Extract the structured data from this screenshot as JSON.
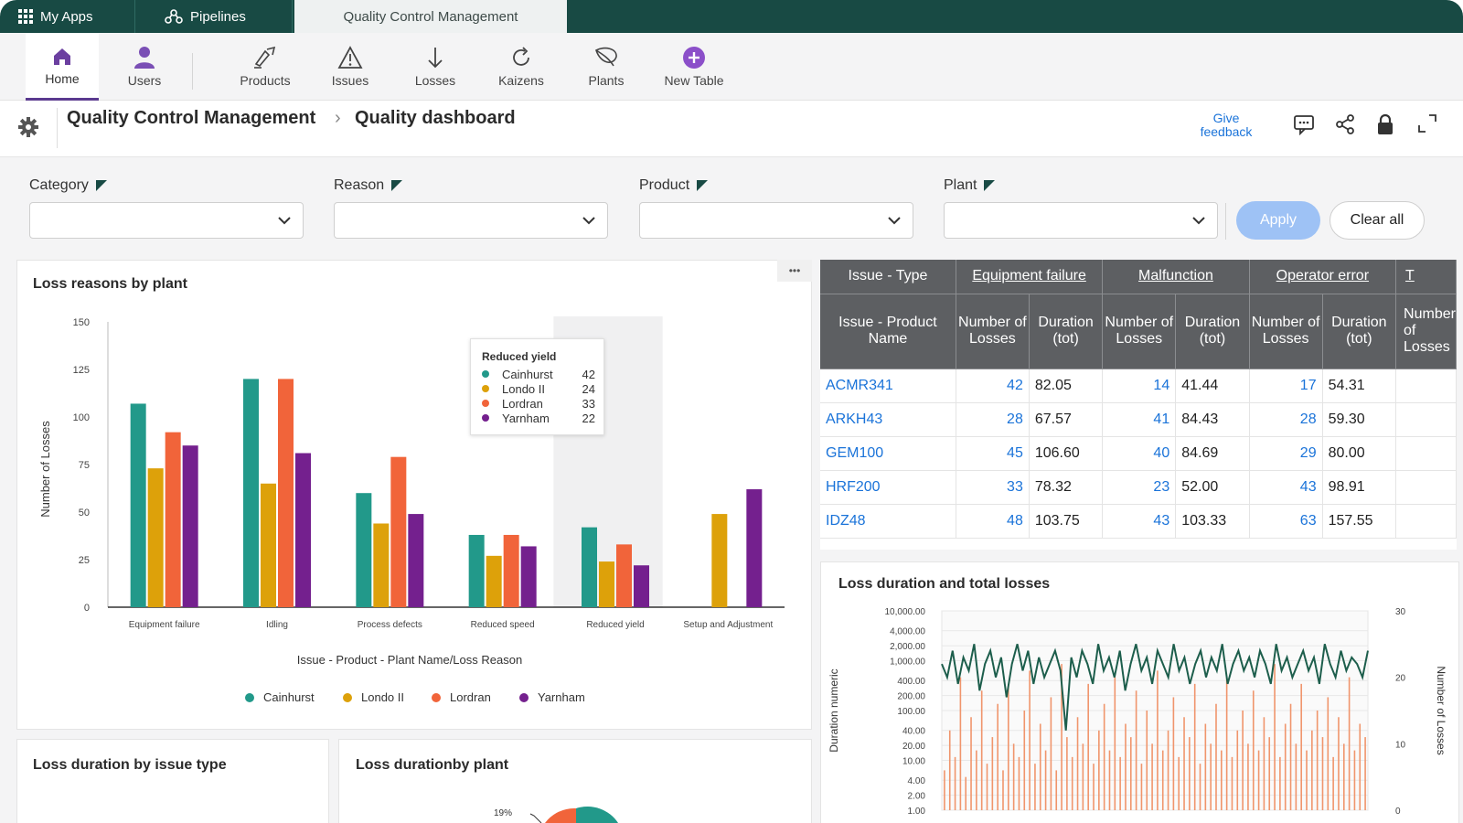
{
  "topbar": {
    "my_apps": "My Apps",
    "pipelines": "Pipelines",
    "active_tab": "Quality Control Management"
  },
  "toolbar": {
    "items": [
      {
        "label": "Home",
        "icon": "home-icon"
      },
      {
        "label": "Users",
        "icon": "user-icon"
      },
      {
        "label": "Products",
        "icon": "products-icon"
      },
      {
        "label": "Issues",
        "icon": "warning-icon"
      },
      {
        "label": "Losses",
        "icon": "arrow-down-icon"
      },
      {
        "label": "Kaizens",
        "icon": "refresh-icon"
      },
      {
        "label": "Plants",
        "icon": "leaf-icon"
      },
      {
        "label": "New Table",
        "icon": "plus-circle-icon"
      }
    ]
  },
  "header": {
    "breadcrumb_app": "Quality Control Management",
    "breadcrumb_sep": "›",
    "breadcrumb_page": "Quality dashboard",
    "give_feedback_line1": "Give",
    "give_feedback_line2": "feedback"
  },
  "filters": {
    "category": "Category",
    "reason": "Reason",
    "product": "Product",
    "plant": "Plant",
    "apply": "Apply",
    "clear_all": "Clear all"
  },
  "colors": {
    "teal": "#22998a",
    "gold": "#dda10a",
    "orange": "#f1643a",
    "purple": "#74208e",
    "topbar": "#184a44",
    "link": "#1a73d9"
  },
  "bar_chart": {
    "title": "Loss reasons by plant",
    "more": "•••",
    "xlabel": "Issue - Product - Plant Name/Loss Reason",
    "ylabel": "Number of Losses",
    "tooltip": {
      "title": "Reduced yield",
      "rows": [
        {
          "name": "Cainhurst",
          "value": "42"
        },
        {
          "name": "Londo II",
          "value": "24"
        },
        {
          "name": "Lordran",
          "value": "33"
        },
        {
          "name": "Yarnham",
          "value": "22"
        }
      ]
    },
    "legend": [
      "Cainhurst",
      "Londo II",
      "Lordran",
      "Yarnham"
    ]
  },
  "chart_data": [
    {
      "type": "bar",
      "title": "Loss reasons by plant",
      "xlabel": "Issue - Product - Plant Name/Loss Reason",
      "ylabel": "Number of Losses",
      "ylim": [
        0,
        150
      ],
      "yticks": [
        "0",
        "25",
        "50",
        "75",
        "100",
        "125",
        "150"
      ],
      "categories": [
        "Equipment failure",
        "Idling",
        "Process defects",
        "Reduced speed",
        "Reduced yield",
        "Setup and Adjustment"
      ],
      "series": [
        {
          "name": "Cainhurst",
          "values": [
            107,
            120,
            60,
            38,
            42,
            0
          ]
        },
        {
          "name": "Londo II",
          "values": [
            73,
            65,
            44,
            27,
            24,
            49
          ]
        },
        {
          "name": "Lordran",
          "values": [
            92,
            120,
            79,
            38,
            33,
            0
          ]
        },
        {
          "name": "Yarnham",
          "values": [
            85,
            81,
            49,
            32,
            22,
            62
          ]
        }
      ],
      "legend": "bottom",
      "grid": false
    },
    {
      "type": "line",
      "title": "Loss duration and total losses",
      "ylabel": "Duration numeric",
      "y2label": "Number of Losses",
      "yticks": [
        "10,000.00",
        "4,000.00",
        "2,000.00",
        "1,000.00",
        "400.00",
        "200.00",
        "100.00",
        "40.00",
        "20.00",
        "10.00",
        "4.00",
        "2.00",
        "1.00"
      ],
      "y2ticks": [
        "30",
        "20",
        "10",
        "0"
      ],
      "ylim": [
        1,
        10000
      ],
      "y2lim": [
        0,
        30
      ],
      "yscale": "log",
      "series": [
        {
          "values": [
            22,
            20,
            24,
            19,
            23,
            21,
            25,
            18,
            22,
            24,
            20,
            23,
            17,
            22,
            25,
            21,
            24,
            19,
            23,
            20,
            22,
            24,
            21,
            12,
            23,
            20,
            24,
            22,
            19,
            25,
            21,
            23,
            20,
            24,
            18,
            22,
            25,
            21,
            23,
            19,
            24,
            22,
            20,
            25,
            21,
            23,
            19,
            22,
            24,
            20,
            23,
            21,
            25,
            19,
            22,
            24,
            21,
            23,
            20,
            24,
            22,
            19,
            25,
            21,
            23,
            20,
            22,
            24,
            21,
            23,
            19,
            25,
            22,
            20,
            24,
            21,
            23,
            22,
            20,
            24
          ]
        },
        {
          "values": [
            6,
            12,
            8,
            20,
            5,
            14,
            9,
            18,
            7,
            11,
            16,
            6,
            19,
            10,
            8,
            15,
            21,
            7,
            13,
            9,
            17,
            6,
            22,
            11,
            8,
            14,
            10,
            19,
            7,
            12,
            16,
            9,
            20,
            8,
            13,
            11,
            18,
            7,
            15,
            10,
            21,
            9,
            12,
            17,
            8,
            14,
            11,
            19,
            7,
            13,
            10,
            16,
            9,
            20,
            8,
            12,
            15,
            10,
            18,
            9,
            14,
            11,
            22,
            8,
            13,
            16,
            10,
            19,
            9,
            12,
            15,
            11,
            17,
            8,
            14,
            10,
            20,
            9,
            13,
            11
          ]
        }
      ]
    }
  ],
  "table": {
    "col_type_header": "Issue - Type",
    "groups": [
      "Equipment failure",
      "Malfunction",
      "Operator error",
      "T"
    ],
    "product_header": "Issue - Product Name",
    "number_header": "Number of Losses",
    "duration_header": "Duration (tot)",
    "rows": [
      {
        "product": "ACMR341",
        "ef_n": "42",
        "ef_d": "82.05",
        "m_n": "14",
        "m_d": "41.44",
        "oe_n": "17",
        "oe_d": "54.31"
      },
      {
        "product": "ARKH43",
        "ef_n": "28",
        "ef_d": "67.57",
        "m_n": "41",
        "m_d": "84.43",
        "oe_n": "28",
        "oe_d": "59.30"
      },
      {
        "product": "GEM100",
        "ef_n": "45",
        "ef_d": "106.60",
        "m_n": "40",
        "m_d": "84.69",
        "oe_n": "29",
        "oe_d": "80.00"
      },
      {
        "product": "HRF200",
        "ef_n": "33",
        "ef_d": "78.32",
        "m_n": "23",
        "m_d": "52.00",
        "oe_n": "43",
        "oe_d": "98.91"
      },
      {
        "product": "IDZ48",
        "ef_n": "48",
        "ef_d": "103.75",
        "m_n": "43",
        "m_d": "103.33",
        "oe_n": "63",
        "oe_d": "157.55"
      }
    ]
  },
  "bottom_cards": {
    "by_issue_type": "Loss duration by issue type",
    "by_plant": "Loss durationby plant",
    "pie_label": "19%"
  }
}
